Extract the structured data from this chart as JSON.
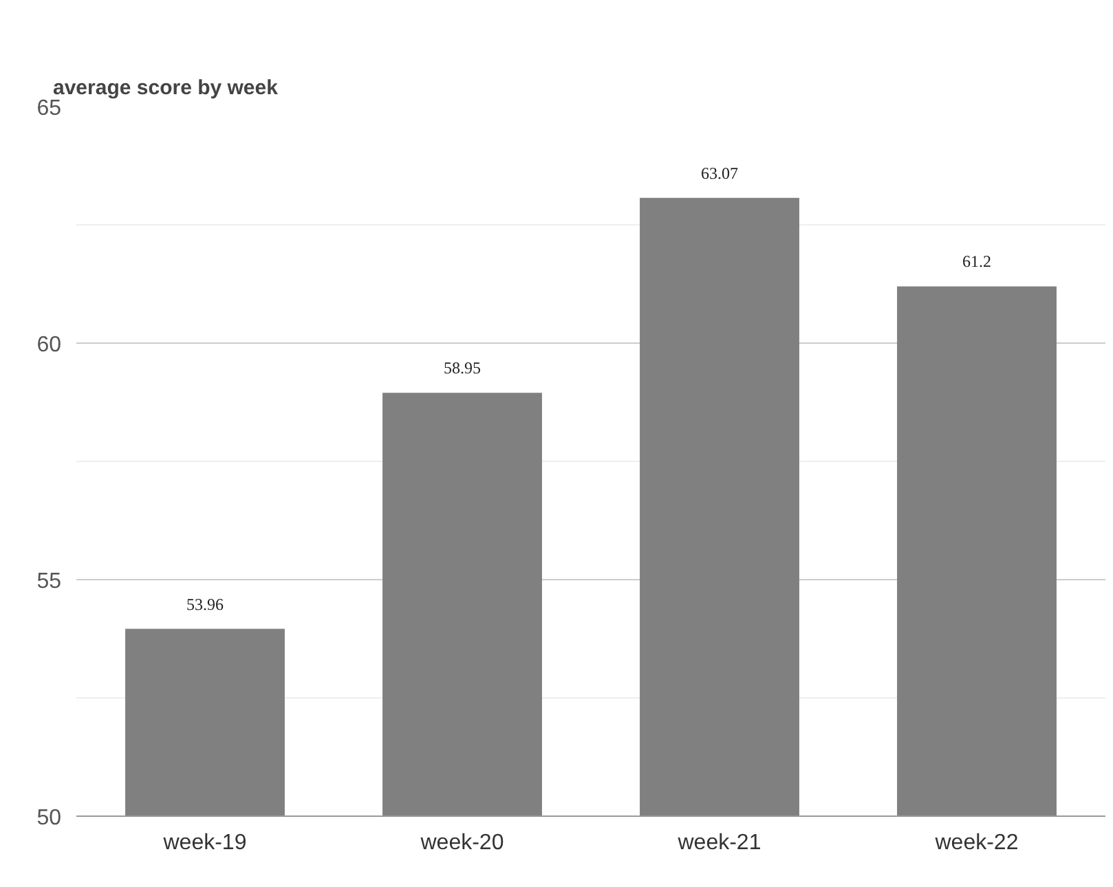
{
  "chart_data": {
    "type": "bar",
    "title": "average score by week",
    "categories": [
      "week-19",
      "week-20",
      "week-21",
      "week-22"
    ],
    "values": [
      53.96,
      58.95,
      63.07,
      61.2
    ],
    "color": "#808080",
    "ylim": [
      50,
      65
    ],
    "yticks": [
      50,
      {
        "value": 52.5,
        "label": null
      },
      55,
      {
        "value": 57.5,
        "label": null
      },
      60,
      {
        "value": 62.5,
        "label": null
      },
      65
    ],
    "grid": "y",
    "data_labels": true
  }
}
